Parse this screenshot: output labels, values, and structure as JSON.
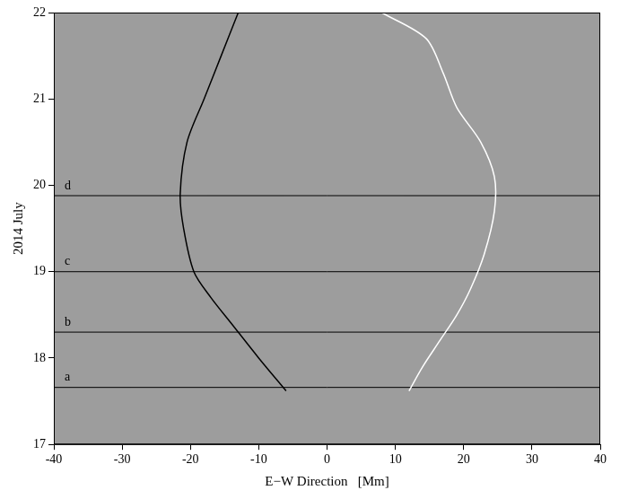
{
  "chart_data": {
    "type": "line",
    "x_label": "E−W Direction   [Mm]",
    "y_label": "2014 July",
    "xlim": [
      -40,
      40
    ],
    "xticks": [
      -40,
      -30,
      -20,
      -10,
      0,
      10,
      20,
      30,
      40
    ],
    "ylim": [
      17,
      22
    ],
    "yticks": [
      17,
      18,
      19,
      20,
      21,
      22
    ],
    "grid": false,
    "series": [
      {
        "color": "#000000",
        "x": [
          -6,
          -10,
          -14,
          -17,
          -19.5,
          -21,
          -21.5,
          -20.5,
          -18,
          -15.5,
          -13
        ],
        "values": [
          17.62,
          18.0,
          18.4,
          18.7,
          19.0,
          19.5,
          19.9,
          20.5,
          21.0,
          21.5,
          22.0
        ]
      },
      {
        "color": "#ffffff",
        "x": [
          12,
          14,
          16.5,
          19,
          21,
          23,
          24.5,
          24.5,
          22.5,
          19,
          17,
          14.5,
          8
        ],
        "values": [
          17.62,
          17.9,
          18.2,
          18.5,
          18.8,
          19.2,
          19.7,
          20.1,
          20.5,
          20.9,
          21.3,
          21.7,
          22.0
        ]
      }
    ],
    "horizontal_lines": [
      {
        "label": "a",
        "y": 17.66,
        "color": "#000000"
      },
      {
        "label": "b",
        "y": 18.3,
        "color": "#000000"
      },
      {
        "label": "c",
        "y": 19.0,
        "color": "#000000"
      },
      {
        "label": "d",
        "y": 19.88,
        "color": "#000000"
      }
    ]
  }
}
